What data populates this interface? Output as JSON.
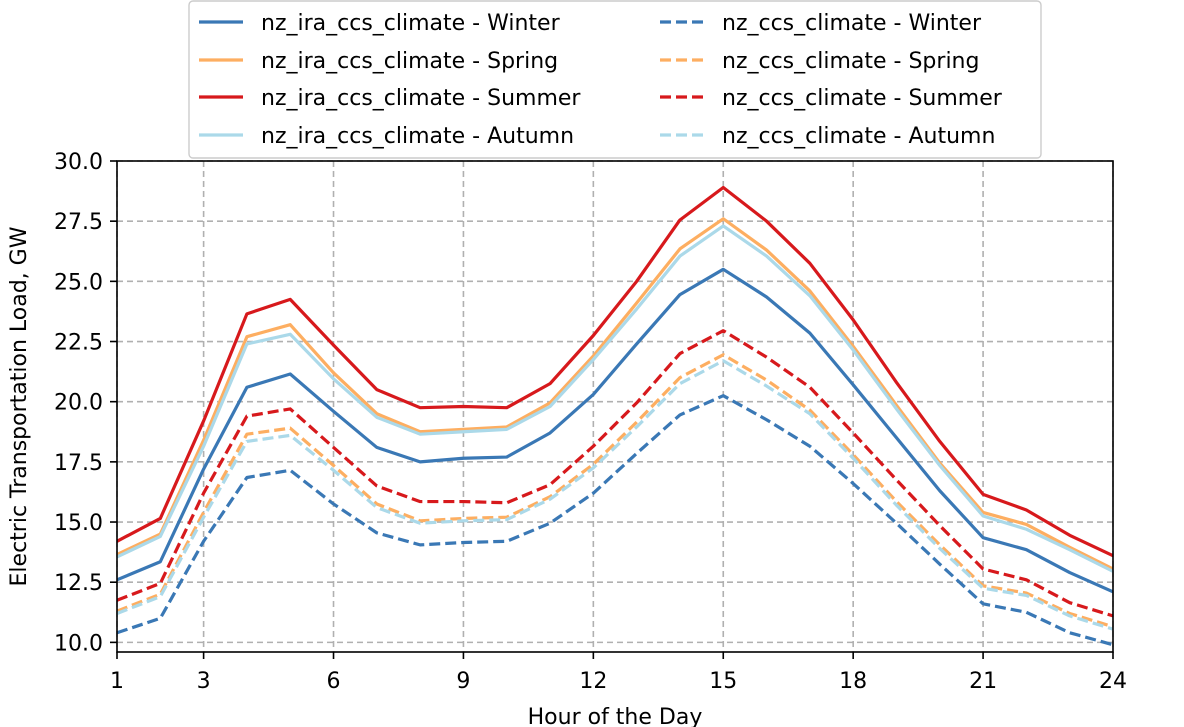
{
  "chart_data": {
    "type": "line",
    "xlabel": "Hour of the Day",
    "ylabel": "Electric Transportation Load, GW",
    "xlim": [
      1,
      24
    ],
    "ylim": [
      9.6,
      30.0
    ],
    "xticks": [
      1,
      3,
      6,
      9,
      12,
      15,
      18,
      21,
      24
    ],
    "yticks": [
      10.0,
      12.5,
      15.0,
      17.5,
      20.0,
      22.5,
      25.0,
      27.5,
      30.0
    ],
    "ytick_labels": [
      "10.0",
      "12.5",
      "15.0",
      "17.5",
      "20.0",
      "22.5",
      "25.0",
      "27.5",
      "30.0"
    ],
    "grid": true,
    "legend_position": "top-center",
    "x": [
      1,
      2,
      3,
      4,
      5,
      6,
      7,
      8,
      9,
      10,
      11,
      12,
      13,
      14,
      15,
      16,
      17,
      18,
      19,
      20,
      21,
      22,
      23,
      24
    ],
    "series": [
      {
        "name": "nz_ira_ccs_climate - Winter",
        "color": "#3a78b5",
        "dash": "solid",
        "values": [
          12.6,
          13.35,
          17.2,
          20.6,
          21.15,
          19.6,
          18.1,
          17.5,
          17.65,
          17.7,
          18.7,
          20.3,
          22.4,
          24.45,
          25.5,
          24.35,
          22.85,
          20.7,
          18.5,
          16.3,
          14.35,
          13.85,
          12.9,
          12.1
        ]
      },
      {
        "name": "nz_ira_ccs_climate - Spring",
        "color": "#fdae61",
        "dash": "solid",
        "values": [
          13.65,
          14.5,
          18.4,
          22.7,
          23.2,
          21.2,
          19.5,
          18.75,
          18.85,
          18.95,
          19.95,
          21.9,
          24.1,
          26.35,
          27.6,
          26.3,
          24.6,
          22.3,
          19.85,
          17.45,
          15.4,
          14.9,
          13.95,
          13.05
        ]
      },
      {
        "name": "nz_ira_ccs_climate - Summer",
        "color": "#d7191c",
        "dash": "solid",
        "values": [
          14.2,
          15.15,
          19.2,
          23.65,
          24.25,
          22.35,
          20.5,
          19.75,
          19.8,
          19.75,
          20.75,
          22.75,
          25.0,
          27.55,
          28.9,
          27.5,
          25.75,
          23.4,
          20.8,
          18.35,
          16.15,
          15.5,
          14.45,
          13.6
        ]
      },
      {
        "name": "nz_ira_ccs_climate - Autumn",
        "color": "#abd9e9",
        "dash": "solid",
        "values": [
          13.55,
          14.4,
          18.15,
          22.4,
          22.8,
          20.95,
          19.35,
          18.65,
          18.75,
          18.85,
          19.8,
          21.75,
          23.85,
          26.05,
          27.3,
          26.05,
          24.4,
          22.15,
          19.7,
          17.35,
          15.25,
          14.7,
          13.85,
          12.95
        ]
      },
      {
        "name": "nz_ccs_climate - Winter",
        "color": "#3a78b5",
        "dash": "dashed",
        "values": [
          10.4,
          11.0,
          14.2,
          16.85,
          17.15,
          15.75,
          14.55,
          14.05,
          14.15,
          14.2,
          14.95,
          16.2,
          17.85,
          19.45,
          20.25,
          19.25,
          18.15,
          16.6,
          14.95,
          13.25,
          11.6,
          11.25,
          10.4,
          9.9
        ]
      },
      {
        "name": "nz_ccs_climate - Spring",
        "color": "#fdae61",
        "dash": "dashed",
        "values": [
          11.3,
          12.0,
          15.4,
          18.65,
          18.9,
          17.35,
          15.75,
          15.05,
          15.15,
          15.2,
          16.05,
          17.4,
          19.15,
          21.0,
          21.95,
          20.9,
          19.65,
          17.8,
          15.85,
          14.05,
          12.35,
          12.05,
          11.2,
          10.65
        ]
      },
      {
        "name": "nz_ccs_climate - Summer",
        "color": "#d7191c",
        "dash": "dashed",
        "values": [
          11.75,
          12.45,
          16.2,
          19.4,
          19.7,
          18.1,
          16.5,
          15.85,
          15.85,
          15.8,
          16.55,
          18.15,
          19.95,
          22.0,
          22.95,
          21.85,
          20.6,
          18.7,
          16.75,
          14.85,
          13.05,
          12.6,
          11.65,
          11.1
        ]
      },
      {
        "name": "nz_ccs_climate - Autumn",
        "color": "#abd9e9",
        "dash": "dashed",
        "values": [
          11.2,
          11.9,
          15.2,
          18.35,
          18.6,
          17.15,
          15.6,
          14.95,
          15.05,
          15.1,
          15.95,
          17.25,
          18.95,
          20.75,
          21.7,
          20.65,
          19.5,
          17.65,
          15.7,
          13.9,
          12.25,
          11.95,
          11.1,
          10.55
        ]
      }
    ]
  }
}
